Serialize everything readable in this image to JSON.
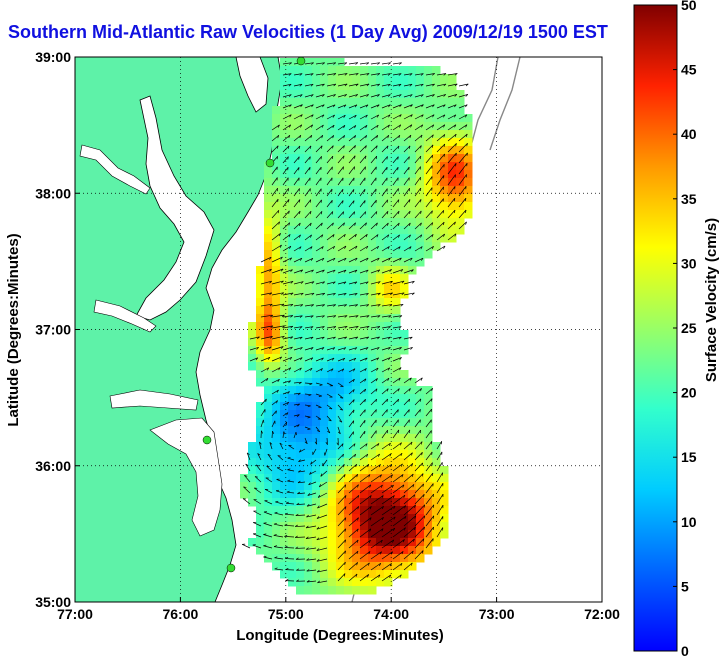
{
  "title": "Southern Mid-Atlantic Raw Velocities (1 Day Avg) 2009/12/19 1500 EST",
  "map": {
    "xlabel": "Longitude (Degrees:Minutes)",
    "ylabel": "Latitude (Degrees:Minutes)",
    "x_ticks": [
      "77:00",
      "76:00",
      "75:00",
      "74:00",
      "73:00",
      "72:00"
    ],
    "y_ticks": [
      "39:00",
      "38:00",
      "37:00",
      "36:00",
      "35:00"
    ],
    "lon_range": [
      -77,
      -72
    ],
    "lat_range": [
      35,
      39
    ],
    "grid": true,
    "land_color": "#5ef2a8",
    "water_color": "#ffffff"
  },
  "colorbar": {
    "label": "Surface Velocity (cm/s)",
    "ticks": [
      "0",
      "5",
      "10",
      "15",
      "20",
      "25",
      "30",
      "35",
      "40",
      "45",
      "50"
    ],
    "range": [
      0,
      50
    ],
    "colormap": "jet"
  }
}
